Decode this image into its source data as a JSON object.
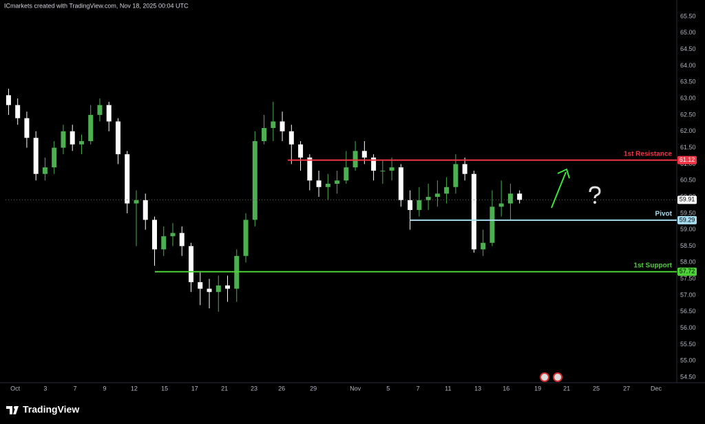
{
  "chart_data": {
    "type": "candlestick",
    "header": "ICmarkets created with TradingView.com, Nov 18, 2025 00:04 UTC",
    "brand": "TradingView",
    "x": [
      1,
      4,
      7,
      10,
      13,
      16,
      19,
      22,
      25,
      28,
      31,
      34,
      37,
      40,
      43,
      46,
      49,
      52,
      55,
      58,
      61,
      64,
      67,
      70,
      73,
      76,
      79,
      82,
      85,
      88,
      91,
      94,
      97,
      100,
      103,
      106,
      109,
      112,
      115,
      118,
      121,
      124,
      127,
      130,
      133,
      136,
      139,
      142,
      145,
      148,
      151,
      154,
      157,
      160,
      163,
      166,
      169
    ],
    "open": [
      63.1,
      62.8,
      62.4,
      61.8,
      60.7,
      60.9,
      61.5,
      62.0,
      61.6,
      61.7,
      62.5,
      62.8,
      62.3,
      61.3,
      59.8,
      59.9,
      59.3,
      58.4,
      58.8,
      58.9,
      58.5,
      57.4,
      57.2,
      57.1,
      57.3,
      57.2,
      58.2,
      59.3,
      61.7,
      62.1,
      62.3,
      62.0,
      61.6,
      61.2,
      60.5,
      60.3,
      60.4,
      60.5,
      60.9,
      61.4,
      61.2,
      60.8,
      60.8,
      60.9,
      59.9,
      59.6,
      59.9,
      60.0,
      60.1,
      60.3,
      61.0,
      60.7,
      58.4,
      58.6,
      59.7,
      59.8,
      60.1
    ],
    "high": [
      63.3,
      63.0,
      62.6,
      62.0,
      61.2,
      61.7,
      62.2,
      62.2,
      61.9,
      62.8,
      63.0,
      62.9,
      62.4,
      61.4,
      60.2,
      60.1,
      59.4,
      59.1,
      59.2,
      59.1,
      58.6,
      57.7,
      57.5,
      57.6,
      57.6,
      58.4,
      59.5,
      62.0,
      62.5,
      62.9,
      62.6,
      62.2,
      61.7,
      61.3,
      60.8,
      60.7,
      60.8,
      61.4,
      61.7,
      61.7,
      61.3,
      61.1,
      61.2,
      61.0,
      60.2,
      60.3,
      60.4,
      60.5,
      60.6,
      61.3,
      61.2,
      60.8,
      59.0,
      60.2,
      60.5,
      60.4,
      60.2
    ],
    "low": [
      62.5,
      62.2,
      61.5,
      60.5,
      60.5,
      60.7,
      61.3,
      61.4,
      61.3,
      61.6,
      62.3,
      62.0,
      61.0,
      59.5,
      58.5,
      59.0,
      57.9,
      58.2,
      58.5,
      58.2,
      57.1,
      56.7,
      56.6,
      56.5,
      56.8,
      56.8,
      58.0,
      59.1,
      61.6,
      61.7,
      61.7,
      61.0,
      60.8,
      60.2,
      60.0,
      59.9,
      60.1,
      60.4,
      60.8,
      61.0,
      60.5,
      60.4,
      60.5,
      59.7,
      59.0,
      59.4,
      59.6,
      59.7,
      59.8,
      60.1,
      60.5,
      58.3,
      58.2,
      58.5,
      59.4,
      59.3,
      59.8
    ],
    "close": [
      62.8,
      62.4,
      61.8,
      60.7,
      60.9,
      61.5,
      62.0,
      61.6,
      61.7,
      62.5,
      62.8,
      62.3,
      61.3,
      59.8,
      59.9,
      59.3,
      58.4,
      58.8,
      58.9,
      58.5,
      57.4,
      57.2,
      57.1,
      57.3,
      57.2,
      58.2,
      59.3,
      61.7,
      62.1,
      62.3,
      62.0,
      61.6,
      61.2,
      60.5,
      60.3,
      60.4,
      60.5,
      60.9,
      61.4,
      61.2,
      60.8,
      60.8,
      60.9,
      59.9,
      59.6,
      59.9,
      60.0,
      60.1,
      60.3,
      61.0,
      60.7,
      58.4,
      58.6,
      59.7,
      59.8,
      60.1,
      59.91
    ],
    "up_color": "#4caf50",
    "down_color": "#ffffff",
    "levels": [
      {
        "name": "1st Resistance",
        "value": 61.12,
        "start": 92.8,
        "color": "#f23645"
      },
      {
        "name": "Pivot",
        "value": 59.29,
        "start": 132.9,
        "color": "#a6dcef"
      },
      {
        "name": "1st Support",
        "value": 57.72,
        "start": 49.1,
        "color": "#4cd137"
      }
    ],
    "xlim": [
      0,
      220
    ],
    "xticks": [
      {
        "value": 3.2,
        "label": "Oct"
      },
      {
        "value": 13.1,
        "label": "3"
      },
      {
        "value": 22.9,
        "label": "7"
      },
      {
        "value": 32.6,
        "label": "9"
      },
      {
        "value": 42.3,
        "label": "12"
      },
      {
        "value": 52.3,
        "label": "15"
      },
      {
        "value": 62.2,
        "label": "17"
      },
      {
        "value": 72,
        "label": "21"
      },
      {
        "value": 81.7,
        "label": "23"
      },
      {
        "value": 90.8,
        "label": "26"
      },
      {
        "value": 101.2,
        "label": "29"
      },
      {
        "value": 115,
        "label": "Nov"
      },
      {
        "value": 125.8,
        "label": "5"
      },
      {
        "value": 135.6,
        "label": "7"
      },
      {
        "value": 145.5,
        "label": "11"
      },
      {
        "value": 155.3,
        "label": "13"
      },
      {
        "value": 164.6,
        "label": "16"
      },
      {
        "value": 175,
        "label": "19"
      },
      {
        "value": 184.5,
        "label": "21"
      },
      {
        "value": 194.2,
        "label": "25"
      },
      {
        "value": 204.2,
        "label": "27"
      },
      {
        "value": 213.9,
        "label": "Dec"
      }
    ],
    "ylim": [
      54.23,
      65.94
    ],
    "yticks": [
      {
        "value": 54.5,
        "label": "54.50"
      },
      {
        "value": 55,
        "label": "55.00"
      },
      {
        "value": 55.5,
        "label": "55.50"
      },
      {
        "value": 56,
        "label": "56.00"
      },
      {
        "value": 56.5,
        "label": "56.50"
      },
      {
        "value": 57,
        "label": "57.00"
      },
      {
        "value": 57.5,
        "label": "57.50"
      },
      {
        "value": 58,
        "label": "58.00"
      },
      {
        "value": 58.5,
        "label": "58.50"
      },
      {
        "value": 59,
        "label": "59.00"
      },
      {
        "value": 59.5,
        "label": "59.50"
      },
      {
        "value": 60,
        "label": "60.00"
      },
      {
        "value": 60.5,
        "label": "60.50"
      },
      {
        "value": 61,
        "label": "61.00"
      },
      {
        "value": 61.5,
        "label": "61.50"
      },
      {
        "value": 62,
        "label": "62.00"
      },
      {
        "value": 62.5,
        "label": "62.50"
      },
      {
        "value": 63,
        "label": "63.00"
      },
      {
        "value": 63.5,
        "label": "63.50"
      },
      {
        "value": 64,
        "label": "64.00"
      },
      {
        "value": 64.5,
        "label": "64.50"
      },
      {
        "value": 65,
        "label": "65.00"
      },
      {
        "value": 65.5,
        "label": "65.50"
      }
    ],
    "grid": false
  }
}
